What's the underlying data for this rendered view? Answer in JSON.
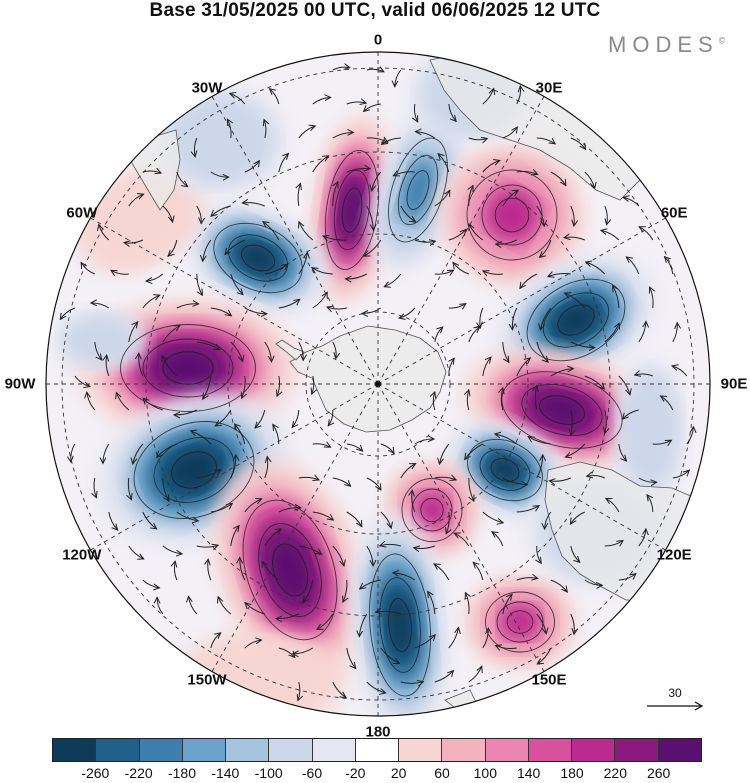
{
  "title": "Base 31/05/2025 00 UTC, valid 06/06/2025 12 UTC",
  "logo": {
    "text": "MODES",
    "mark": "©"
  },
  "longitude_labels": [
    {
      "id": "lon-0",
      "text": "0",
      "angle": 0
    },
    {
      "id": "lon-30e",
      "text": "30E",
      "angle": 30
    },
    {
      "id": "lon-60e",
      "text": "60E",
      "angle": 60
    },
    {
      "id": "lon-90e",
      "text": "90E",
      "angle": 90
    },
    {
      "id": "lon-120e",
      "text": "120E",
      "angle": 120
    },
    {
      "id": "lon-150e",
      "text": "150E",
      "angle": 150
    },
    {
      "id": "lon-180",
      "text": "180",
      "angle": 180
    },
    {
      "id": "lon-150w",
      "text": "150W",
      "angle": 210
    },
    {
      "id": "lon-120w",
      "text": "120W",
      "angle": 240
    },
    {
      "id": "lon-90w",
      "text": "90W",
      "angle": 270
    },
    {
      "id": "lon-60w",
      "text": "60W",
      "angle": 300
    },
    {
      "id": "lon-30w",
      "text": "30W",
      "angle": 330
    }
  ],
  "reference_vector": {
    "label": "30"
  },
  "colorbar": {
    "labels": [
      "-260",
      "-220",
      "-180",
      "-140",
      "-100",
      "-60",
      "-20",
      "20",
      "60",
      "100",
      "140",
      "180",
      "220",
      "260"
    ],
    "colors": [
      "#0f3b5a",
      "#1f5f8a",
      "#3c7fae",
      "#6aa2cb",
      "#a4c3df",
      "#ccd7ea",
      "#e6e6f2",
      "#ffffff",
      "#f7d5d3",
      "#f2b3bf",
      "#ea86b0",
      "#d8519c",
      "#bb2a8e",
      "#8a1a7e",
      "#5a1070"
    ]
  },
  "colors": {
    "land": "#ececec",
    "coast": "#555555",
    "grid": "#333333",
    "arrow": "#222222"
  }
}
